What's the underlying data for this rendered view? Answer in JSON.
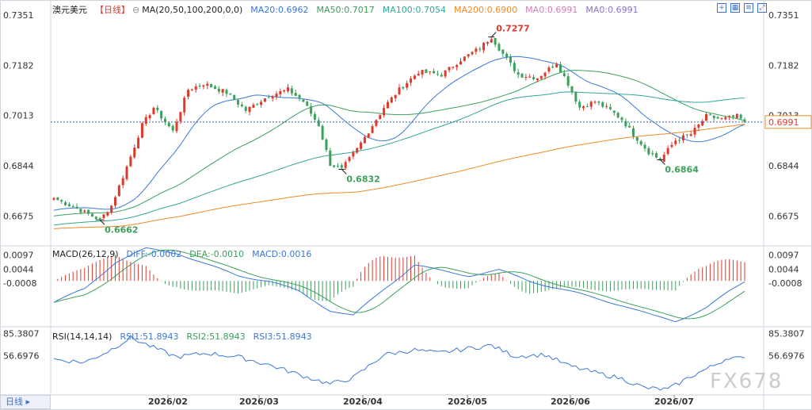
{
  "header": {
    "symbol": "澳元美元",
    "period": "【日线】",
    "ma_label": "MA(20,50,100,200,0,0)",
    "ma_values": [
      {
        "text": "MA20:0.6962",
        "color": "#3a78d8"
      },
      {
        "text": "MA50:0.7017",
        "color": "#3aa05a"
      },
      {
        "text": "MA100:0.7054",
        "color": "#2fa89a"
      },
      {
        "text": "MA200:0.6900",
        "color": "#f08a24"
      },
      {
        "text": "MA0:0.6991",
        "color": "#d67ab8"
      },
      {
        "text": "MA0:0.6991",
        "color": "#8c6fd0"
      }
    ]
  },
  "macd_header": {
    "label": "MACD(26,12,9)",
    "values": [
      {
        "text": "DIFF:-0.0002",
        "color": "#3a78d8"
      },
      {
        "text": "DEA:-0.0010",
        "color": "#3aa05a"
      },
      {
        "text": "MACD:0.0016",
        "color": "#3a78d8"
      }
    ]
  },
  "rsi_header": {
    "label": "RSI(14,14,14)",
    "values": [
      {
        "text": "RSI1:51.8943",
        "color": "#3a78d8"
      },
      {
        "text": "RSI2:51.8943",
        "color": "#3aa05a"
      },
      {
        "text": "RSI3:51.8943",
        "color": "#3a78d8"
      }
    ]
  },
  "bottom_tab": "日线",
  "watermark": "FX678",
  "chart_data": {
    "type": "candlestick",
    "price_axis": {
      "ticks": [
        "0.7351",
        "0.7182",
        "0.7013",
        "0.6844",
        "0.6675"
      ],
      "ylim": [
        0.658,
        0.738
      ]
    },
    "current_price": "0.6991",
    "annotations": [
      {
        "text": "0.7277",
        "type": "high"
      },
      {
        "text": "0.6662",
        "type": "low"
      },
      {
        "text": "0.6832",
        "type": "low"
      },
      {
        "text": "0.6864",
        "type": "low"
      }
    ],
    "macd_axis": {
      "ticks": [
        "0.0097",
        "0.0044",
        "-0.0008"
      ]
    },
    "rsi_axis": {
      "ticks": [
        "85.3807",
        "56.6976"
      ]
    },
    "x_ticks": [
      "2026/02",
      "2026/03",
      "2026/04",
      "2026/05",
      "2026/06",
      "2026/07"
    ],
    "close_anchors": [
      [
        0,
        0.6735
      ],
      [
        6,
        0.67
      ],
      [
        12,
        0.6662
      ],
      [
        15,
        0.671
      ],
      [
        19,
        0.684
      ],
      [
        23,
        0.698
      ],
      [
        26,
        0.704
      ],
      [
        31,
        0.696
      ],
      [
        35,
        0.71
      ],
      [
        39,
        0.712
      ],
      [
        45,
        0.709
      ],
      [
        50,
        0.703
      ],
      [
        56,
        0.708
      ],
      [
        61,
        0.71
      ],
      [
        65,
        0.706
      ],
      [
        69,
        0.698
      ],
      [
        72,
        0.685
      ],
      [
        75,
        0.6832
      ],
      [
        79,
        0.69
      ],
      [
        83,
        0.698
      ],
      [
        86,
        0.704
      ],
      [
        90,
        0.71
      ],
      [
        95,
        0.716
      ],
      [
        101,
        0.715
      ],
      [
        106,
        0.72
      ],
      [
        111,
        0.724
      ],
      [
        114,
        0.7277
      ],
      [
        117,
        0.722
      ],
      [
        121,
        0.715
      ],
      [
        126,
        0.714
      ],
      [
        131,
        0.719
      ],
      [
        134,
        0.712
      ],
      [
        137,
        0.704
      ],
      [
        141,
        0.706
      ],
      [
        145,
        0.703
      ],
      [
        148,
        0.7
      ],
      [
        151,
        0.695
      ],
      [
        155,
        0.689
      ],
      [
        158,
        0.6864
      ],
      [
        162,
        0.693
      ],
      [
        166,
        0.695
      ],
      [
        170,
        0.701
      ],
      [
        174,
        0.7
      ],
      [
        178,
        0.701
      ],
      [
        180,
        0.6991
      ]
    ],
    "macd_anchors": [
      [
        0,
        -0.008
      ],
      [
        8,
        -0.003
      ],
      [
        16,
        0.007
      ],
      [
        24,
        0.012
      ],
      [
        32,
        0.0105
      ],
      [
        40,
        0.006
      ],
      [
        48,
        0.002
      ],
      [
        56,
        0.0
      ],
      [
        64,
        -0.004
      ],
      [
        72,
        -0.011
      ],
      [
        78,
        -0.013
      ],
      [
        86,
        -0.003
      ],
      [
        94,
        0.006
      ],
      [
        100,
        0.004
      ],
      [
        108,
        0.002
      ],
      [
        116,
        0.004
      ],
      [
        124,
        0.0
      ],
      [
        132,
        -0.003
      ],
      [
        140,
        -0.006
      ],
      [
        148,
        -0.009
      ],
      [
        156,
        -0.013
      ],
      [
        162,
        -0.015
      ],
      [
        170,
        -0.01
      ],
      [
        176,
        -0.004
      ],
      [
        180,
        -0.0002
      ]
    ],
    "rsi_anchors": [
      [
        0,
        52
      ],
      [
        8,
        48
      ],
      [
        14,
        62
      ],
      [
        20,
        80
      ],
      [
        26,
        67
      ],
      [
        32,
        55
      ],
      [
        40,
        60
      ],
      [
        48,
        55
      ],
      [
        56,
        45
      ],
      [
        64,
        32
      ],
      [
        72,
        20
      ],
      [
        78,
        28
      ],
      [
        86,
        58
      ],
      [
        94,
        64
      ],
      [
        100,
        60
      ],
      [
        108,
        66
      ],
      [
        114,
        70
      ],
      [
        120,
        56
      ],
      [
        128,
        58
      ],
      [
        134,
        44
      ],
      [
        140,
        36
      ],
      [
        148,
        27
      ],
      [
        154,
        15
      ],
      [
        160,
        13
      ],
      [
        166,
        30
      ],
      [
        172,
        44
      ],
      [
        176,
        55
      ],
      [
        180,
        51.89
      ]
    ]
  }
}
